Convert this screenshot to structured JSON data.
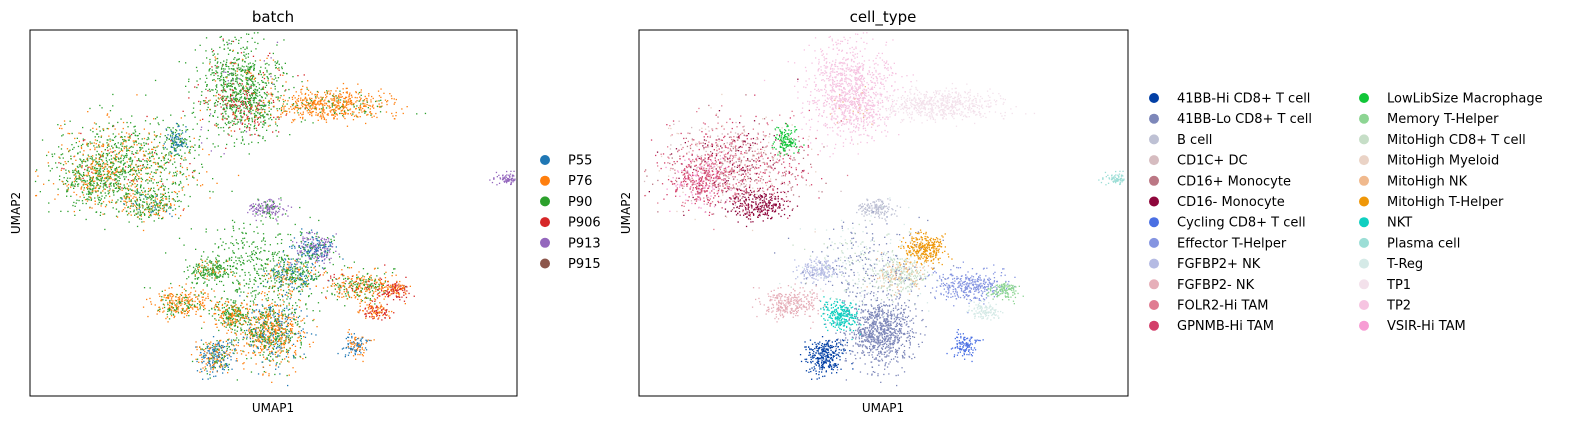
{
  "chart_data": [
    {
      "type": "scatter",
      "title": "batch",
      "xlabel": "UMAP1",
      "ylabel": "UMAP2",
      "grid": false,
      "ticks": false,
      "legend_position": "right",
      "series": [
        {
          "name": "P55",
          "color": "#1f77b4"
        },
        {
          "name": "P76",
          "color": "#ff7f0e"
        },
        {
          "name": "P90",
          "color": "#2ca02c"
        },
        {
          "name": "P906",
          "color": "#d62728"
        },
        {
          "name": "P913",
          "color": "#9467bd"
        },
        {
          "name": "P915",
          "color": "#8c564b"
        }
      ]
    },
    {
      "type": "scatter",
      "title": "cell_type",
      "xlabel": "UMAP1",
      "ylabel": "UMAP2",
      "grid": false,
      "ticks": false,
      "legend_position": "right",
      "series": [
        {
          "name": "41BB-Hi CD8+ T cell",
          "color": "#023fa5"
        },
        {
          "name": "41BB-Lo CD8+ T cell",
          "color": "#7d87b9"
        },
        {
          "name": "B cell",
          "color": "#bec1d4"
        },
        {
          "name": "CD1C+ DC",
          "color": "#d6bcc0"
        },
        {
          "name": "CD16+ Monocyte",
          "color": "#bb7784"
        },
        {
          "name": "CD16- Monocyte",
          "color": "#8e063b"
        },
        {
          "name": "Cycling CD8+ T cell",
          "color": "#4a6fe3"
        },
        {
          "name": "Effector T-Helper",
          "color": "#8595e1"
        },
        {
          "name": "FGFBP2+ NK",
          "color": "#b5bbe3"
        },
        {
          "name": "FGFBP2- NK",
          "color": "#e6afb9"
        },
        {
          "name": "FOLR2-Hi TAM",
          "color": "#e07b91"
        },
        {
          "name": "GPNMB-Hi TAM",
          "color": "#d33f6a"
        },
        {
          "name": "LowLibSize Macrophage",
          "color": "#11c638"
        },
        {
          "name": "Memory T-Helper",
          "color": "#8dd593"
        },
        {
          "name": "MitoHigh CD8+ T cell",
          "color": "#c6dec7"
        },
        {
          "name": "MitoHigh Myeloid",
          "color": "#ead3c6"
        },
        {
          "name": "MitoHigh NK",
          "color": "#f0b98d"
        },
        {
          "name": "MitoHigh T-Helper",
          "color": "#ef9708"
        },
        {
          "name": "NKT",
          "color": "#0fcfc0"
        },
        {
          "name": "Plasma cell",
          "color": "#9cded6"
        },
        {
          "name": "T-Reg",
          "color": "#d5eae7"
        },
        {
          "name": "TP1",
          "color": "#f3e1eb"
        },
        {
          "name": "TP2",
          "color": "#f6c4e1"
        },
        {
          "name": "VSIR-Hi TAM",
          "color": "#f79cd4"
        }
      ]
    }
  ]
}
